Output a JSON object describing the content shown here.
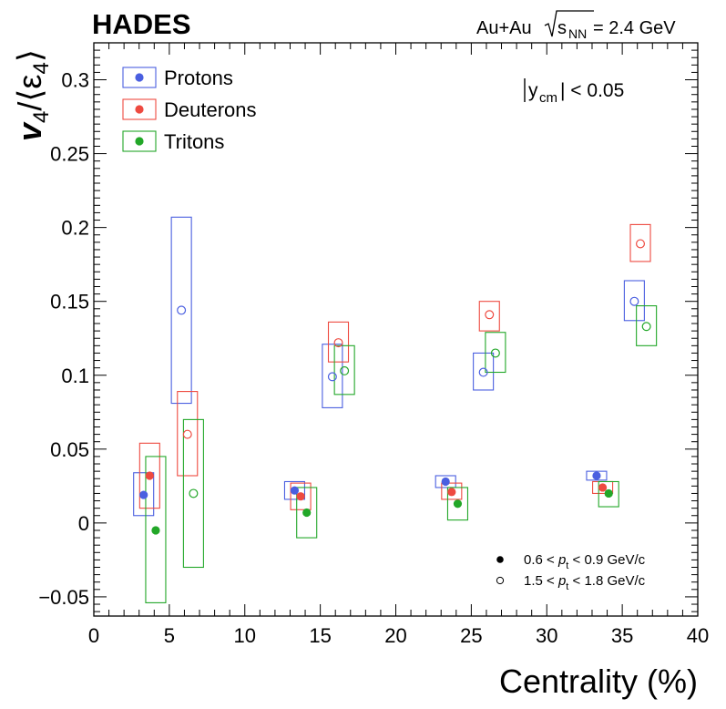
{
  "chart_data": {
    "type": "scatter",
    "experiment": "HADES",
    "system_label": "Au+Au",
    "energy_label": "s",
    "energy_sub": "NN",
    "energy_value": " = 2.4 GeV",
    "rapidity_label": "y",
    "rapidity_sub": "cm",
    "rapidity_cut": "| < 0.05",
    "xlabel": "Centrality (%)",
    "ylabel_main": "v",
    "ylabel_sub": "4",
    "ylabel_denom": "/⟨ε",
    "ylabel_denom_sub": "4",
    "ylabel_close": "⟩",
    "xlim": [
      0,
      40
    ],
    "ylim": [
      -0.063,
      0.325
    ],
    "xticks": [
      0,
      5,
      10,
      15,
      20,
      25,
      30,
      35,
      40
    ],
    "xtick_labels": [
      "0",
      "5",
      "10",
      "15",
      "20",
      "25",
      "30",
      "35",
      "40"
    ],
    "yticks": [
      -0.05,
      0,
      0.05,
      0.1,
      0.15,
      0.2,
      0.25,
      0.3
    ],
    "ytick_labels": [
      "−0.05",
      "0",
      "0.05",
      "0.1",
      "0.15",
      "0.2",
      "0.25",
      "0.3"
    ],
    "legend_position": "top-left",
    "pt_legend": [
      {
        "marker": "filled",
        "label_pre": "0.6 < ",
        "label_var": "p",
        "label_sub": "t",
        "label_post": " < 0.9 GeV/c"
      },
      {
        "marker": "open",
        "label_pre": "1.5 < ",
        "label_var": "p",
        "label_sub": "t",
        "label_post": " < 1.8 GeV/c"
      }
    ],
    "series": [
      {
        "name": "Protons",
        "color": "#4a5fe0",
        "low_pt": {
          "x": [
            3.3,
            13.3,
            23.3,
            33.3
          ],
          "y": [
            0.019,
            0.022,
            0.028,
            0.032
          ],
          "sys_low": [
            0.005,
            0.016,
            0.024,
            0.029
          ],
          "sys_high": [
            0.034,
            0.028,
            0.032,
            0.035
          ]
        },
        "high_pt": {
          "x": [
            5.8,
            15.8,
            25.8,
            35.8
          ],
          "y": [
            0.144,
            0.099,
            0.102,
            0.15
          ],
          "sys_low": [
            0.081,
            0.078,
            0.09,
            0.137
          ],
          "sys_high": [
            0.207,
            0.121,
            0.115,
            0.164
          ]
        }
      },
      {
        "name": "Deuterons",
        "color": "#ee4a40",
        "low_pt": {
          "x": [
            3.7,
            13.7,
            23.7,
            33.7
          ],
          "y": [
            0.032,
            0.018,
            0.021,
            0.024
          ],
          "sys_low": [
            0.01,
            0.009,
            0.016,
            0.02
          ],
          "sys_high": [
            0.054,
            0.027,
            0.027,
            0.028
          ]
        },
        "high_pt": {
          "x": [
            6.2,
            16.2,
            26.2,
            36.2
          ],
          "y": [
            0.06,
            0.122,
            0.141,
            0.189
          ],
          "sys_low": [
            0.032,
            0.109,
            0.13,
            0.177
          ],
          "sys_high": [
            0.089,
            0.136,
            0.15,
            0.202
          ]
        }
      },
      {
        "name": "Tritons",
        "color": "#22a728",
        "low_pt": {
          "x": [
            4.1,
            14.1,
            24.1,
            34.1
          ],
          "y": [
            -0.005,
            0.007,
            0.013,
            0.02
          ],
          "sys_low": [
            -0.054,
            -0.01,
            0.002,
            0.011
          ],
          "sys_high": [
            0.045,
            0.024,
            0.024,
            0.028
          ]
        },
        "high_pt": {
          "x": [
            6.6,
            16.6,
            26.6,
            36.6
          ],
          "y": [
            0.02,
            0.103,
            0.115,
            0.133
          ],
          "sys_low": [
            -0.03,
            0.087,
            0.102,
            0.12
          ],
          "sys_high": [
            0.07,
            0.12,
            0.129,
            0.147
          ]
        }
      }
    ]
  }
}
